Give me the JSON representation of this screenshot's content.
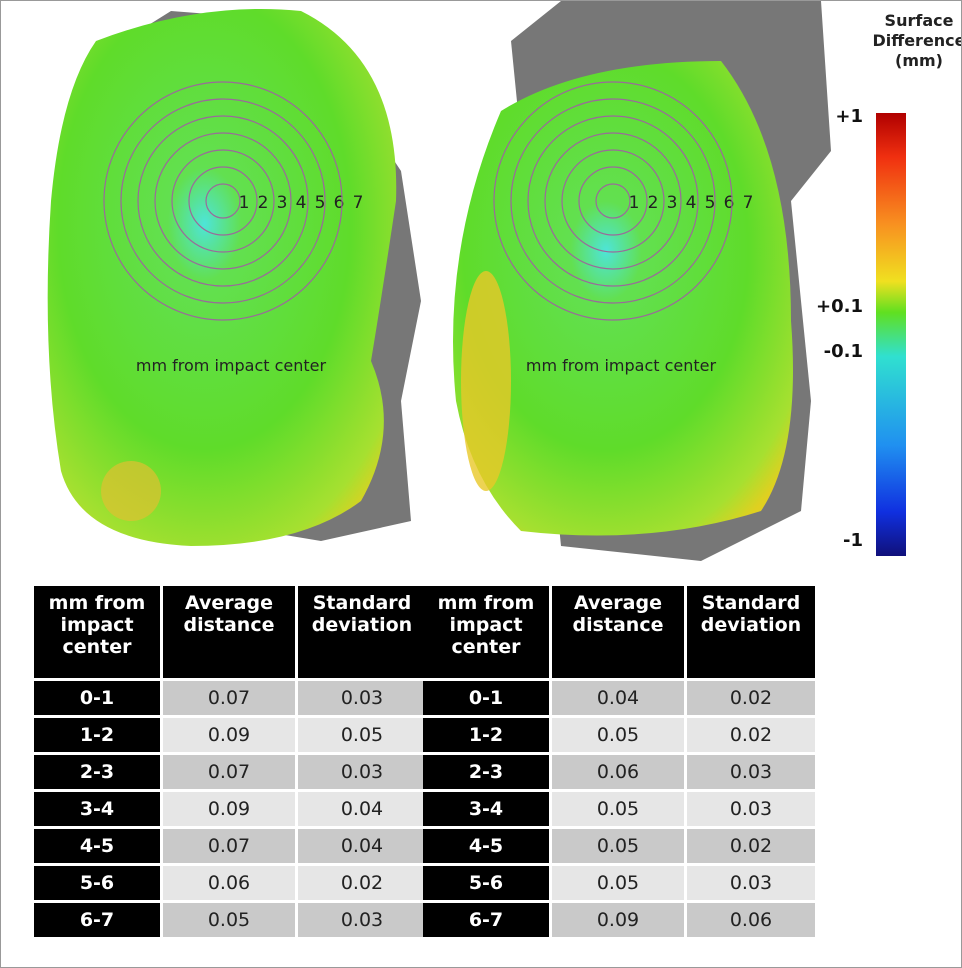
{
  "panels": [
    {
      "ring_labels": [
        "1",
        "2",
        "3",
        "4",
        "5",
        "6",
        "7"
      ],
      "caption": "mm from impact center"
    },
    {
      "ring_labels": [
        "1",
        "2",
        "3",
        "4",
        "5",
        "6",
        "7"
      ],
      "caption": "mm from impact center"
    }
  ],
  "colorbar": {
    "title_lines": [
      "Surface",
      "Difference",
      "(mm)"
    ],
    "labels": [
      "+1",
      "+0.1",
      "-0.1",
      "-1"
    ]
  },
  "tables": [
    {
      "header": [
        "mm from impact center",
        "Average distance",
        "Standard deviation"
      ],
      "rows": [
        [
          "0-1",
          "0.07",
          "0.03"
        ],
        [
          "1-2",
          "0.09",
          "0.05"
        ],
        [
          "2-3",
          "0.07",
          "0.03"
        ],
        [
          "3-4",
          "0.09",
          "0.04"
        ],
        [
          "4-5",
          "0.07",
          "0.04"
        ],
        [
          "5-6",
          "0.06",
          "0.02"
        ],
        [
          "6-7",
          "0.05",
          "0.03"
        ]
      ]
    },
    {
      "header": [
        "mm from impact center",
        "Average distance",
        "Standard deviation"
      ],
      "rows": [
        [
          "0-1",
          "0.04",
          "0.02"
        ],
        [
          "1-2",
          "0.05",
          "0.02"
        ],
        [
          "2-3",
          "0.06",
          "0.03"
        ],
        [
          "3-4",
          "0.05",
          "0.03"
        ],
        [
          "4-5",
          "0.05",
          "0.02"
        ],
        [
          "5-6",
          "0.05",
          "0.03"
        ],
        [
          "6-7",
          "0.09",
          "0.06"
        ]
      ]
    }
  ]
}
